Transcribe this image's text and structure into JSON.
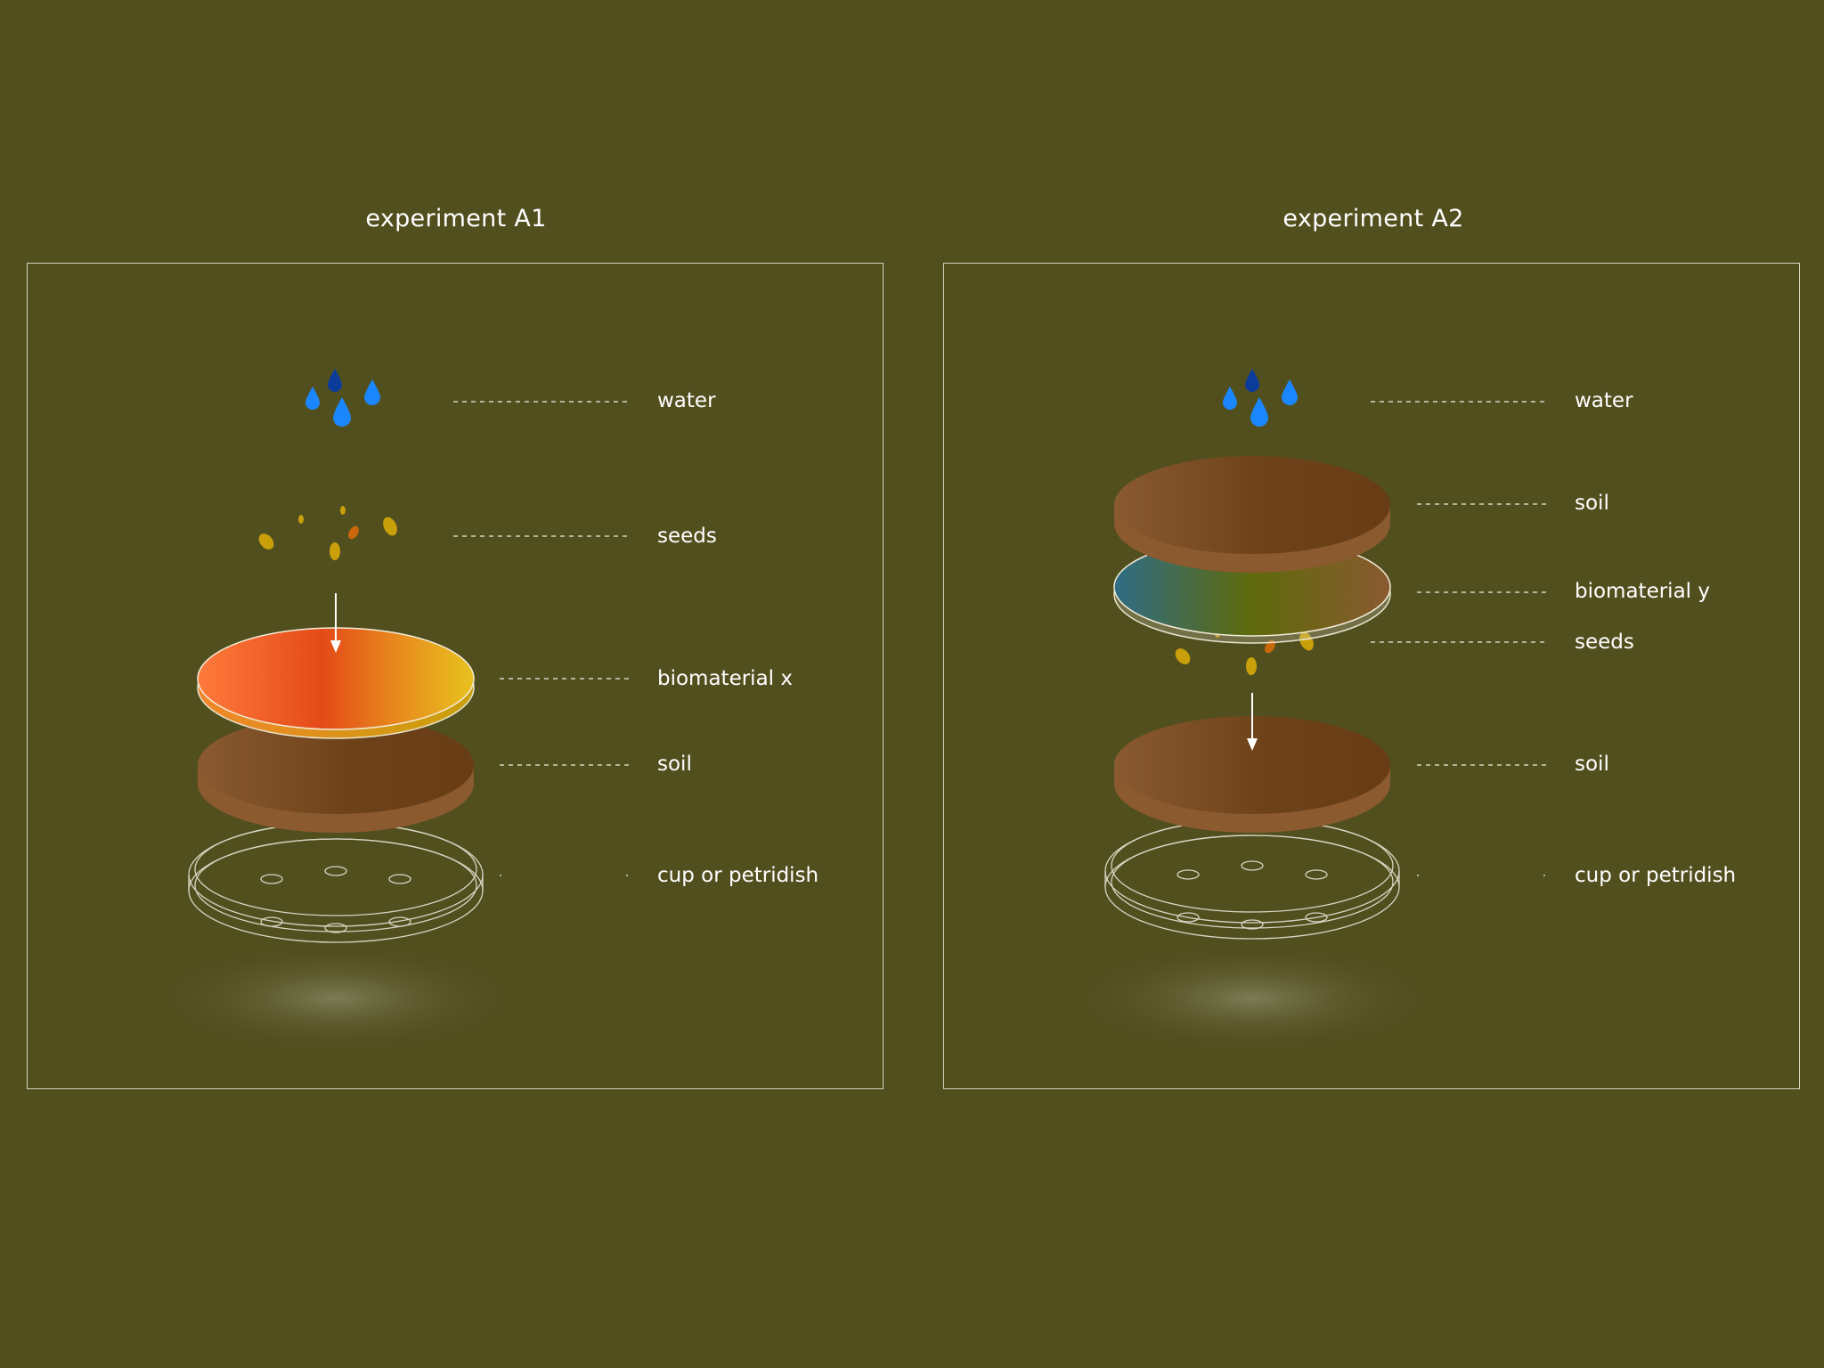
{
  "experiments": [
    {
      "title": "experiment A1",
      "labels": {
        "water": "water",
        "seeds": "seeds",
        "biomaterial": "biomaterial x",
        "soil": "soil",
        "dish": "cup or petridish"
      }
    },
    {
      "title": "experiment A2",
      "labels": {
        "water": "water",
        "soil_top": "soil",
        "biomaterial": "biomaterial y",
        "seeds": "seeds",
        "soil": "soil",
        "dish": "cup or petridish"
      }
    }
  ],
  "colors": {
    "background": "#524f1f",
    "line": "#d6d4c2",
    "water_light": "#1a86ff",
    "water_dark": "#0b3c9c",
    "seed_yellow": "#c9a00a",
    "seed_orange": "#c9670a",
    "soil_light": "#8a5a31",
    "soil_dark": "#6b3f17",
    "biomaterial_x": [
      "#ff7a3c",
      "#e44a18",
      "#e8c21e"
    ],
    "biomaterial_y": [
      "#2f6d86",
      "#5e6a0b",
      "#8a5a31"
    ]
  }
}
